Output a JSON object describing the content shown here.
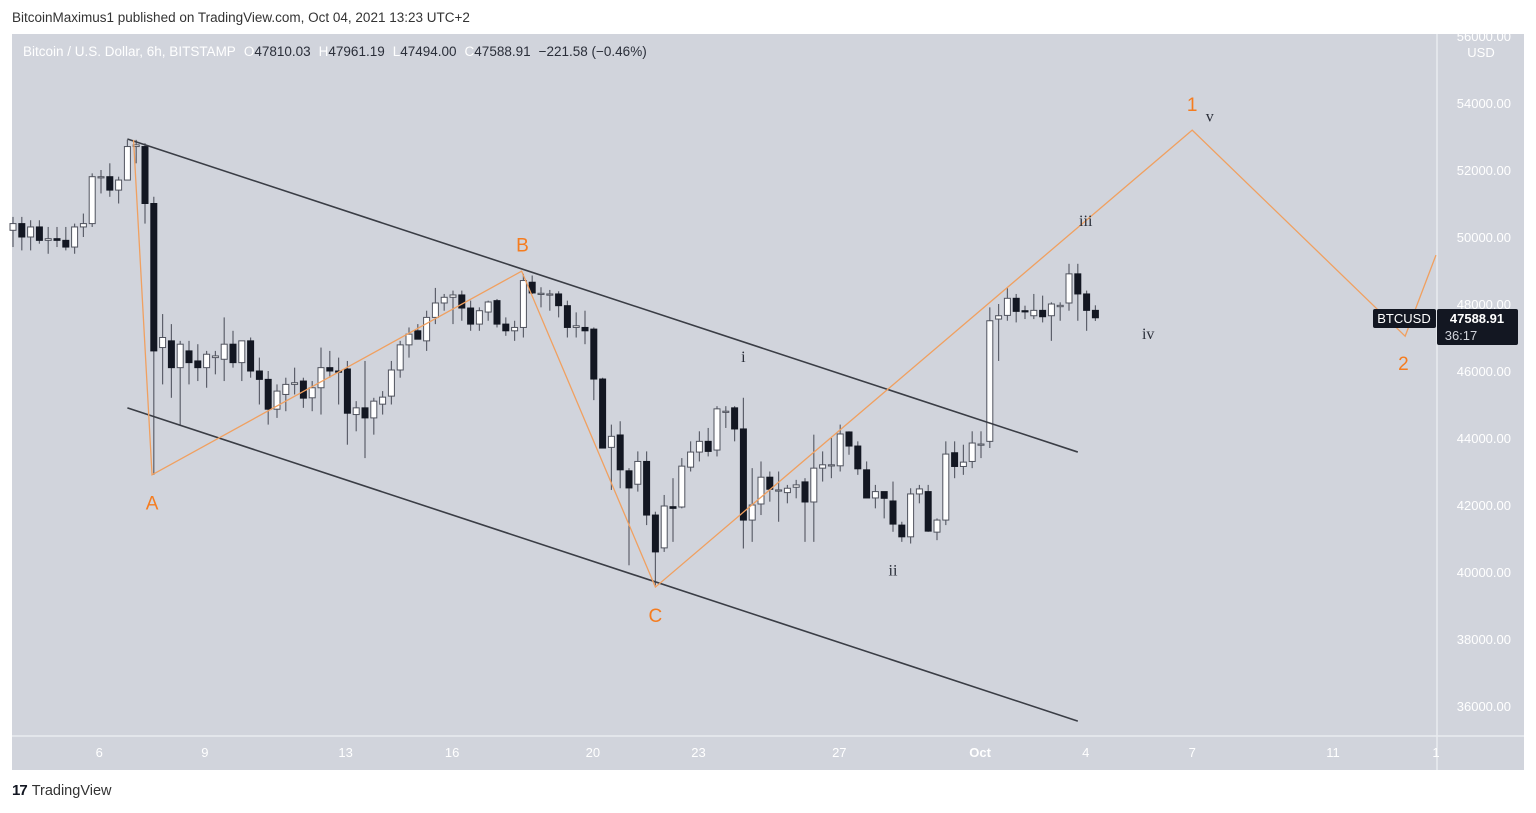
{
  "header": {
    "text": "BitcoinMaximus1 published on TradingView.com, Oct 04, 2021 13:23 UTC+2"
  },
  "legend": {
    "symbol": "Bitcoin / U.S. Dollar, 6h, BITSTAMP",
    "o_label": "O",
    "o": "47810.03",
    "h_label": "H",
    "h": "47961.19",
    "l_label": "L",
    "l": "47494.00",
    "c_label": "C",
    "c": "47588.91",
    "change": "−221.58 (−0.46%)"
  },
  "price_tag": {
    "symbol": "BTCUSD",
    "price": "47588.91",
    "countdown": "36:17"
  },
  "footer": {
    "logo_text": "TradingView",
    "logo_mark": "17"
  },
  "colors": {
    "background": "#d1d4dc",
    "up": "#ffffff",
    "down": "#131722",
    "wick": "#5d606b",
    "wave": "#f0a060",
    "wave_label": "#f57c1f",
    "channel": "#3a3d45"
  },
  "chart_data": {
    "type": "candlestick",
    "title": "Bitcoin / U.S. Dollar, 6h, BITSTAMP",
    "ylabel": "USD",
    "ylim": [
      35000,
      56500
    ],
    "y_ticks": [
      "56000.00",
      "54000.00",
      "52000.00",
      "50000.00",
      "48000.00",
      "46000.00",
      "44000.00",
      "42000.00",
      "40000.00",
      "38000.00",
      "36000.00"
    ],
    "x_ticks": [
      {
        "label": "6",
        "index": 9.8
      },
      {
        "label": "9",
        "index": 21.8
      },
      {
        "label": "13",
        "index": 37.8
      },
      {
        "label": "16",
        "index": 49.9
      },
      {
        "label": "20",
        "index": 65.9
      },
      {
        "label": "23",
        "index": 77.9
      },
      {
        "label": "27",
        "index": 93.9
      },
      {
        "label": "Oct",
        "index": 109.9,
        "bold": true
      },
      {
        "label": "4",
        "index": 121.9
      },
      {
        "label": "7",
        "index": 134
      },
      {
        "label": "11",
        "index": 150
      },
      {
        "label": "1",
        "index": 161.7
      }
    ],
    "candles": [
      [
        50200,
        50600,
        49700,
        50400
      ],
      [
        50400,
        50600,
        49600,
        50000
      ],
      [
        50000,
        50500,
        49600,
        50300
      ],
      [
        50300,
        50500,
        49800,
        49900
      ],
      [
        49900,
        50300,
        49500,
        49950
      ],
      [
        49950,
        50300,
        49700,
        49900
      ],
      [
        49900,
        50300,
        49600,
        49700
      ],
      [
        49700,
        50400,
        49500,
        50300
      ],
      [
        50300,
        50700,
        50000,
        50400
      ],
      [
        50400,
        51900,
        50300,
        51800
      ],
      [
        51800,
        52000,
        51300,
        51800
      ],
      [
        51800,
        52200,
        51200,
        51400
      ],
      [
        51400,
        51800,
        51000,
        51700
      ],
      [
        51700,
        52900,
        51700,
        52700
      ],
      [
        52700,
        52900,
        52200,
        52750
      ],
      [
        52700,
        52800,
        50400,
        51000
      ],
      [
        51000,
        51200,
        42900,
        46600
      ],
      [
        46700,
        47700,
        45600,
        47000
      ],
      [
        46900,
        47400,
        45200,
        46100
      ],
      [
        46100,
        46900,
        44400,
        46800
      ],
      [
        46600,
        46900,
        45600,
        46250
      ],
      [
        46300,
        46800,
        45700,
        46100
      ],
      [
        46100,
        46600,
        45500,
        46500
      ],
      [
        46400,
        46600,
        45900,
        46450
      ],
      [
        46350,
        47600,
        45700,
        46800
      ],
      [
        46800,
        47200,
        46100,
        46250
      ],
      [
        46250,
        46900,
        45700,
        46900
      ],
      [
        46900,
        47000,
        45800,
        46000
      ],
      [
        46000,
        46400,
        45000,
        45750
      ],
      [
        45750,
        46000,
        44400,
        44860
      ],
      [
        44860,
        45600,
        44600,
        45400
      ],
      [
        45300,
        45800,
        44800,
        45600
      ],
      [
        45600,
        46100,
        45300,
        45650
      ],
      [
        45700,
        45800,
        44900,
        45190
      ],
      [
        45200,
        45700,
        44800,
        45500
      ],
      [
        45500,
        46700,
        44700,
        46100
      ],
      [
        46100,
        46600,
        45800,
        46000
      ],
      [
        46000,
        46400,
        45000,
        45990
      ],
      [
        46060,
        46300,
        43800,
        44740
      ],
      [
        44700,
        45100,
        44200,
        44900
      ],
      [
        44900,
        46300,
        43400,
        44600
      ],
      [
        44600,
        45200,
        44100,
        45100
      ],
      [
        45010,
        45400,
        44700,
        45220
      ],
      [
        45250,
        46300,
        45000,
        46030
      ],
      [
        46030,
        46900,
        45800,
        46780
      ],
      [
        46780,
        47300,
        46400,
        47100
      ],
      [
        47200,
        47400,
        46950,
        46950
      ],
      [
        46900,
        47800,
        46600,
        47600
      ],
      [
        47600,
        48480,
        47400,
        48030
      ],
      [
        48030,
        48300,
        47800,
        48200
      ],
      [
        48200,
        48400,
        47400,
        48270
      ],
      [
        48270,
        48400,
        47500,
        47880
      ],
      [
        47880,
        48100,
        47200,
        47400
      ],
      [
        47400,
        47900,
        47200,
        47800
      ],
      [
        47760,
        48100,
        47500,
        48060
      ],
      [
        48100,
        48150,
        47300,
        47400
      ],
      [
        47400,
        47600,
        47050,
        47200
      ],
      [
        47200,
        47500,
        46900,
        47300
      ],
      [
        47300,
        48900,
        47000,
        48700
      ],
      [
        48650,
        48850,
        48300,
        48330
      ],
      [
        48320,
        48500,
        47900,
        48320
      ],
      [
        48300,
        48420,
        47800,
        48300
      ],
      [
        48300,
        48380,
        47600,
        47950
      ],
      [
        47950,
        48100,
        47000,
        47300
      ],
      [
        47300,
        47750,
        47000,
        47350
      ],
      [
        47300,
        47800,
        46800,
        47200
      ],
      [
        47250,
        47300,
        45130,
        45760
      ],
      [
        45760,
        45800,
        43700,
        43700
      ],
      [
        43720,
        44400,
        42450,
        44050
      ],
      [
        44090,
        44500,
        42500,
        43050
      ],
      [
        43020,
        43100,
        40200,
        42510
      ],
      [
        42620,
        43600,
        42400,
        43300
      ],
      [
        43300,
        43600,
        41400,
        41700
      ],
      [
        41700,
        41800,
        39600,
        40600
      ],
      [
        40720,
        42300,
        40600,
        41970
      ],
      [
        41950,
        42800,
        40900,
        41900
      ],
      [
        41940,
        43400,
        41900,
        43160
      ],
      [
        43130,
        43900,
        43000,
        43580
      ],
      [
        43580,
        44200,
        43300,
        43900
      ],
      [
        43900,
        44300,
        43450,
        43600
      ],
      [
        43640,
        44950,
        43450,
        44870
      ],
      [
        44800,
        44950,
        44300,
        44800
      ],
      [
        44900,
        44950,
        43900,
        44270
      ],
      [
        44270,
        45200,
        40700,
        41550
      ],
      [
        41550,
        43100,
        40900,
        42000
      ],
      [
        42030,
        43300,
        41700,
        42830
      ],
      [
        42830,
        43000,
        42100,
        42470
      ],
      [
        42450,
        43000,
        41500,
        42450
      ],
      [
        42370,
        42600,
        42050,
        42500
      ],
      [
        42530,
        42750,
        42200,
        42600
      ],
      [
        42690,
        42800,
        40900,
        42090
      ],
      [
        42090,
        44100,
        40900,
        43100
      ],
      [
        43100,
        43600,
        42700,
        43200
      ],
      [
        43200,
        44000,
        42800,
        43200
      ],
      [
        43170,
        44400,
        43000,
        44120
      ],
      [
        44180,
        44200,
        43500,
        43760
      ],
      [
        43760,
        43900,
        42900,
        43080
      ],
      [
        43050,
        43300,
        42300,
        42210
      ],
      [
        42210,
        42600,
        41900,
        42400
      ],
      [
        42400,
        42400,
        41600,
        42200
      ],
      [
        42120,
        42700,
        41200,
        41430
      ],
      [
        41400,
        41500,
        40900,
        41050
      ],
      [
        41050,
        42500,
        40850,
        42330
      ],
      [
        42330,
        42600,
        42050,
        42480
      ],
      [
        42400,
        42600,
        41200,
        41220
      ],
      [
        41190,
        41600,
        40950,
        41550
      ],
      [
        41550,
        43900,
        41400,
        43520
      ],
      [
        43560,
        43900,
        42800,
        43150
      ],
      [
        43150,
        43800,
        42900,
        43280
      ],
      [
        43300,
        44200,
        43100,
        43850
      ],
      [
        43800,
        44200,
        43400,
        43820
      ],
      [
        43900,
        47900,
        43700,
        47500
      ],
      [
        47550,
        48000,
        46300,
        47650
      ],
      [
        47660,
        48470,
        47500,
        48170
      ],
      [
        48170,
        48300,
        47450,
        47780
      ],
      [
        47800,
        47950,
        47550,
        47780
      ],
      [
        47650,
        48300,
        47550,
        47810
      ],
      [
        47810,
        48250,
        47450,
        47620
      ],
      [
        47650,
        48050,
        46900,
        48000
      ],
      [
        47920,
        48050,
        47500,
        47960
      ],
      [
        48030,
        49200,
        47800,
        48900
      ],
      [
        48900,
        49200,
        47500,
        48300
      ],
      [
        48300,
        48400,
        47200,
        47810
      ],
      [
        47810,
        47961,
        47494,
        47589
      ]
    ],
    "channel_lines": [
      {
        "name": "upper",
        "from": [
          13,
          52925
        ],
        "to": [
          121,
          43580
        ]
      },
      {
        "name": "lower",
        "from": [
          13,
          44900
        ],
        "to": [
          121,
          35550
        ]
      }
    ],
    "wave_path": [
      [
        13.7,
        52900
      ],
      [
        15.8,
        42900
      ],
      [
        57.8,
        48980
      ],
      [
        73.0,
        39550
      ],
      [
        134.0,
        53190
      ],
      [
        158.2,
        47040
      ],
      [
        161.7,
        49460
      ]
    ],
    "wave_labels_major": [
      {
        "text": "A",
        "index": 15.8,
        "price": 42080
      },
      {
        "text": "B",
        "index": 57.9,
        "price": 49780
      },
      {
        "text": "C",
        "index": 73.0,
        "price": 38710
      },
      {
        "text": "1",
        "index": 134.0,
        "price": 53970
      },
      {
        "text": "2",
        "index": 158.0,
        "price": 46240
      }
    ],
    "wave_labels_minor": [
      {
        "text": "i",
        "index": 83.0,
        "price": 46450
      },
      {
        "text": "ii",
        "index": 100.0,
        "price": 40070
      },
      {
        "text": "iii",
        "index": 121.9,
        "price": 50510
      },
      {
        "text": "iv",
        "index": 129.0,
        "price": 47140
      },
      {
        "text": "v",
        "index": 136.0,
        "price": 53630
      }
    ]
  }
}
